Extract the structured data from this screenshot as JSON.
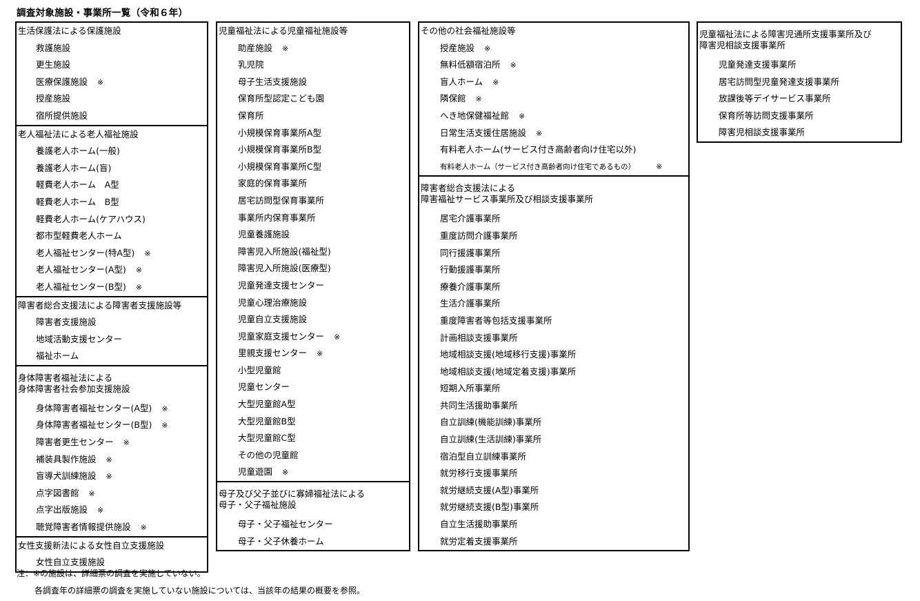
{
  "title": "調査対象施設・事業所一覧（令和６年）",
  "mark_symbol": "※",
  "columns": [
    {
      "sections": [
        {
          "header": [
            "生活保護法による保護施設"
          ],
          "items": [
            {
              "label": "救護施設"
            },
            {
              "label": "更生施設"
            },
            {
              "label": "医療保護施設",
              "mark": true
            },
            {
              "label": "授産施設"
            },
            {
              "label": "宿所提供施設"
            }
          ]
        },
        {
          "header": [
            "老人福祉法による老人福祉施設"
          ],
          "items": [
            {
              "label": "養護老人ホーム(一般)"
            },
            {
              "label": "養護老人ホーム(盲)"
            },
            {
              "label": "軽費老人ホーム　A型"
            },
            {
              "label": "軽費老人ホーム　B型"
            },
            {
              "label": "軽費老人ホーム(ケアハウス)"
            },
            {
              "label": "都市型軽費老人ホーム"
            },
            {
              "label": "老人福祉センター(特A型)",
              "mark": true
            },
            {
              "label": "老人福祉センター(A型)",
              "mark": true
            },
            {
              "label": "老人福祉センター(B型)",
              "mark": true
            }
          ]
        },
        {
          "header": [
            "障害者総合支援法による障害者支援施設等"
          ],
          "items": [
            {
              "label": "障害者支援施設"
            },
            {
              "label": "地域活動支援センター"
            },
            {
              "label": "福祉ホーム"
            }
          ]
        },
        {
          "header": [
            "身体障害者福祉法による",
            "身体障害者社会参加支援施設"
          ],
          "items": [
            {
              "label": "身体障害者福祉センター(A型)",
              "mark": true
            },
            {
              "label": "身体障害者福祉センター(B型)",
              "mark": true
            },
            {
              "label": "障害者更生センター",
              "mark": true
            },
            {
              "label": "補装具製作施設",
              "mark": true
            },
            {
              "label": "盲導犬訓練施設",
              "mark": true
            },
            {
              "label": "点字図書館",
              "mark": true
            },
            {
              "label": "点字出版施設",
              "mark": true
            },
            {
              "label": "聴覚障害者情報提供施設",
              "mark": true
            }
          ]
        },
        {
          "header": [
            "女性支援新法による女性自立支援施設"
          ],
          "items": [
            {
              "label": "女性自立支援施設"
            }
          ]
        }
      ]
    },
    {
      "sections": [
        {
          "header": [
            "児童福祉法による児童福祉施設等"
          ],
          "items": [
            {
              "label": "助産施設",
              "mark": true
            },
            {
              "label": "乳児院"
            },
            {
              "label": "母子生活支援施設"
            },
            {
              "label": "保育所型認定こども園"
            },
            {
              "label": "保育所"
            },
            {
              "label": "小規模保育事業所A型"
            },
            {
              "label": "小規模保育事業所B型"
            },
            {
              "label": "小規模保育事業所C型"
            },
            {
              "label": "家庭的保育事業所"
            },
            {
              "label": "居宅訪問型保育事業所"
            },
            {
              "label": "事業所内保育事業所"
            },
            {
              "label": "児童養護施設"
            },
            {
              "label": "障害児入所施設(福祉型)"
            },
            {
              "label": "障害児入所施設(医療型)"
            },
            {
              "label": "児童発達支援センター"
            },
            {
              "label": "児童心理治療施設"
            },
            {
              "label": "児童自立支援施設"
            },
            {
              "label": "児童家庭支援センター",
              "mark": true
            },
            {
              "label": "里親支援センター",
              "mark": true
            },
            {
              "label": "小型児童館"
            },
            {
              "label": "児童センター"
            },
            {
              "label": "大型児童館A型"
            },
            {
              "label": "大型児童館B型"
            },
            {
              "label": "大型児童館C型"
            },
            {
              "label": "その他の児童館"
            },
            {
              "label": "児童遊園",
              "mark": true
            }
          ]
        },
        {
          "header": [
            "母子及び父子並びに寡婦福祉法による",
            "母子・父子福祉施設"
          ],
          "items": [
            {
              "label": "母子・父子福祉センター"
            },
            {
              "label": "母子・父子休養ホーム"
            }
          ]
        }
      ]
    },
    {
      "sections": [
        {
          "header": [
            "その他の社会福祉施設等"
          ],
          "items": [
            {
              "label": "授産施設",
              "mark": true
            },
            {
              "label": "無料低額宿泊所",
              "mark": true
            },
            {
              "label": "盲人ホーム",
              "mark": true
            },
            {
              "label": "隣保館",
              "mark": true
            },
            {
              "label": "へき地保健福祉館",
              "mark": true
            },
            {
              "label": "日常生活支援住居施設",
              "mark": true
            },
            {
              "label": "有料老人ホーム(サービス付き高齢者向け住宅以外)"
            },
            {
              "label": "有料老人ホーム（サービス付き高齢者向け住宅であるもの）",
              "mark": true,
              "small": true
            }
          ]
        },
        {
          "header": [
            "障害者総合支援法による",
            "障害福祉サービス事業所及び相談支援事業所"
          ],
          "items": [
            {
              "label": "居宅介護事業所"
            },
            {
              "label": "重度訪問介護事業所"
            },
            {
              "label": "同行援護事業所"
            },
            {
              "label": "行動援護事業所"
            },
            {
              "label": "療養介護事業所"
            },
            {
              "label": "生活介護事業所"
            },
            {
              "label": "重度障害者等包括支援事業所"
            },
            {
              "label": "計画相談支援事業所"
            },
            {
              "label": "地域相談支援(地域移行支援)事業所"
            },
            {
              "label": "地域相談支援(地域定着支援)事業所"
            },
            {
              "label": "短期入所事業所"
            },
            {
              "label": "共同生活援助事業所"
            },
            {
              "label": "自立訓練(機能訓練)事業所"
            },
            {
              "label": "自立訓練(生活訓練)事業所"
            },
            {
              "label": "宿泊型自立訓練事業所"
            },
            {
              "label": "就労移行支援事業所"
            },
            {
              "label": "就労継続支援(A型)事業所"
            },
            {
              "label": "就労継続支援(B型)事業所"
            },
            {
              "label": "自立生活援助事業所"
            },
            {
              "label": "就労定着支援事業所"
            }
          ]
        }
      ]
    },
    {
      "sections": [
        {
          "header": [
            "児童福祉法による障害児通所支援事業所及び",
            "障害児相談支援事業所"
          ],
          "items": [
            {
              "label": "児童発達支援事業所"
            },
            {
              "label": "居宅訪問型児童発達支援事業所"
            },
            {
              "label": "放課後等デイサービス事業所"
            },
            {
              "label": "保育所等訪問支援事業所"
            },
            {
              "label": "障害児相談支援事業所"
            }
          ]
        }
      ]
    }
  ],
  "notes": [
    "注：※の施設は、詳細票の調査を実施していない。",
    "各調査年の詳細票の調査を実施していない施設については、当該年の結果の概要を参照。"
  ]
}
